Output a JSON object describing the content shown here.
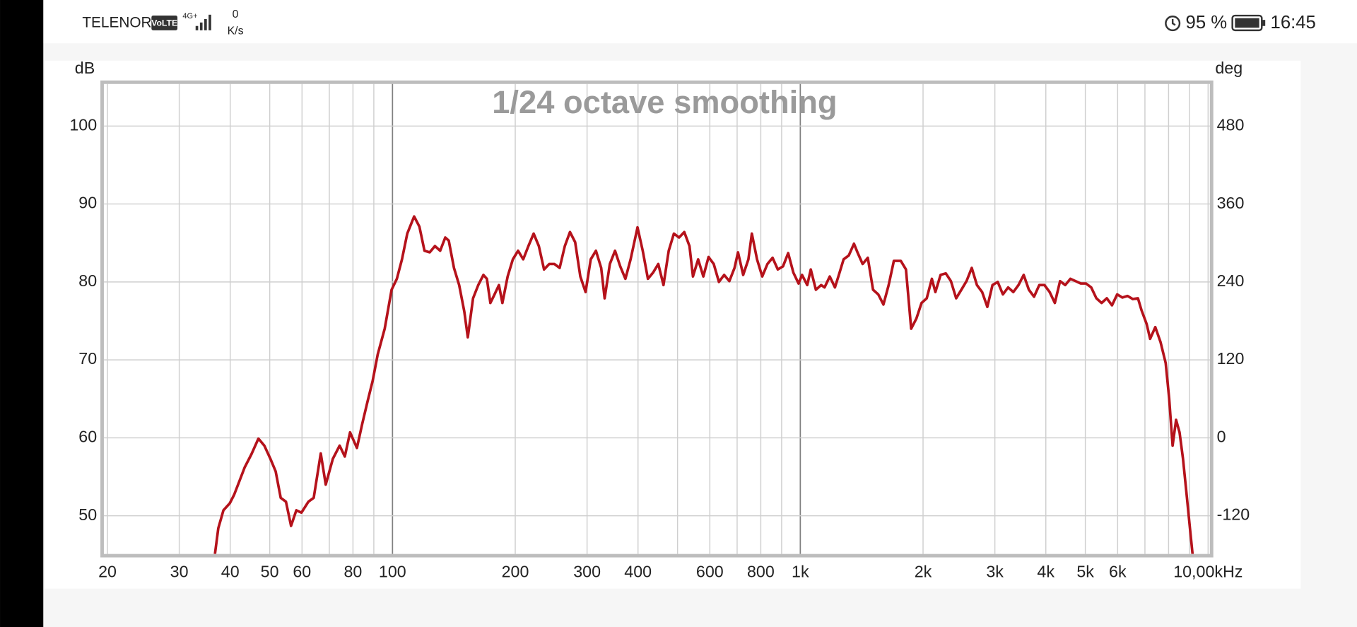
{
  "status_bar": {
    "carrier": "TELENOR",
    "volte": "VoLTE",
    "network": "4G+",
    "speed_value": "0",
    "speed_unit": "K/s",
    "battery": "95 %",
    "time": "16:45"
  },
  "chart_data": {
    "type": "line",
    "title": "1/24 octave smoothing",
    "ylabel": "dB",
    "y2label": "deg",
    "log_x": true,
    "grid": true,
    "color": "#b5121b",
    "xlim": [
      19.6,
      10100
    ],
    "ylim": [
      45.1,
      105.4
    ],
    "y2lim": [
      -179,
      545
    ],
    "xticks": [
      20,
      30,
      40,
      50,
      60,
      80,
      100,
      200,
      300,
      400,
      600,
      800,
      {
        "value": 1000,
        "label": "1k"
      },
      {
        "value": 2000,
        "label": "2k"
      },
      {
        "value": 3000,
        "label": "3k"
      },
      {
        "value": 4000,
        "label": "4k"
      },
      {
        "value": 5000,
        "label": "5k"
      },
      {
        "value": 6000,
        "label": "6k"
      },
      {
        "value": 10000,
        "label": "10,00kHz"
      }
    ],
    "xminor": [
      70,
      90,
      500,
      700,
      900,
      7000,
      8000,
      9000
    ],
    "xmajor": [
      100,
      1000
    ],
    "yticks": [
      50,
      60,
      70,
      80,
      90,
      100
    ],
    "y2ticks": [
      -120,
      0,
      120,
      240,
      360,
      480
    ],
    "x": [
      36.7,
      37.4,
      38.5,
      39.9,
      40.9,
      42.1,
      43.4,
      45.1,
      46.9,
      48.5,
      50.2,
      51.7,
      53.2,
      54.8,
      56.4,
      58.1,
      59.8,
      62.2,
      64.1,
      66.7,
      68.6,
      71.4,
      74.2,
      76.4,
      78.7,
      81.8,
      84.3,
      86.8,
      89.4,
      92.0,
      95.7,
      99.5,
      102.5,
      105.5,
      108.7,
      113,
      116.4,
      119.8,
      123.4,
      127.1,
      130.9,
      134.7,
      137.4,
      141.5,
      145.7,
      150,
      153,
      157.6,
      162.3,
      167.1,
      170.4,
      173.8,
      177.2,
      182.4,
      186,
      191.6,
      197.3,
      203.2,
      209.2,
      215.4,
      221.9,
      228.5,
      235.3,
      242.3,
      249.5,
      257,
      264.6,
      272.4,
      280.5,
      288.8,
      297.5,
      306.3,
      315.4,
      324.9,
      331.3,
      341.2,
      351.3,
      361.8,
      372.5,
      383.6,
      398.9,
      410.8,
      423,
      435.6,
      448.5,
      461.9,
      475.7,
      489.8,
      504.4,
      519.4,
      534.9,
      545.5,
      561.7,
      578.4,
      595.7,
      613.4,
      631.7,
      650.5,
      669.9,
      689.8,
      703.5,
      724.4,
      746,
      760.7,
      783.3,
      806.6,
      830.7,
      855.1,
      880.8,
      907,
      933.9,
      961.6,
      990.3,
      1010,
      1040,
      1061,
      1092,
      1125,
      1147,
      1181,
      1216,
      1240,
      1277,
      1315,
      1354,
      1381,
      1422,
      1464,
      1508,
      1553,
      1599,
      1647,
      1696,
      1764,
      1816,
      1870,
      1926,
      1983,
      2042,
      2102,
      2144,
      2208,
      2274,
      2341,
      2411,
      2483,
      2556,
      2633,
      2711,
      2792,
      2875,
      2960,
      3049,
      3139,
      3233,
      3329,
      3428,
      3530,
      3635,
      3743,
      3855,
      3969,
      4088,
      4209,
      4335,
      4464,
      4596,
      4734,
      4874,
      5019,
      5168,
      5322,
      5481,
      5644,
      5812,
      5985,
      6163,
      6346,
      6536,
      6730,
      6863,
      7068,
      7208,
      7422,
      7643,
      7870,
      8025,
      8184,
      8346,
      8511,
      8679,
      8851,
      9026,
      9159
    ],
    "values": [
      45.1,
      48.4,
      50.7,
      51.6,
      52.7,
      54.4,
      56.2,
      57.9,
      59.9,
      59.0,
      57.3,
      55.7,
      52.3,
      51.8,
      48.7,
      50.7,
      50.4,
      51.8,
      52.3,
      58.0,
      54.0,
      57.3,
      59.0,
      57.6,
      60.7,
      58.7,
      61.8,
      64.6,
      67.3,
      70.7,
      74.0,
      79.0,
      80.4,
      82.9,
      86.2,
      88.4,
      87.1,
      84.0,
      83.8,
      84.6,
      84.0,
      85.7,
      85.3,
      81.8,
      79.6,
      76.2,
      72.9,
      77.9,
      79.6,
      80.9,
      80.4,
      77.3,
      78.2,
      79.6,
      77.3,
      80.7,
      82.9,
      84.0,
      82.9,
      84.6,
      86.2,
      84.6,
      81.6,
      82.3,
      82.3,
      81.8,
      84.6,
      86.4,
      85.1,
      80.7,
      78.7,
      82.9,
      84.0,
      81.8,
      77.9,
      82.3,
      84.0,
      82.0,
      80.4,
      82.9,
      87.0,
      84.0,
      80.4,
      81.2,
      82.3,
      79.6,
      84.0,
      86.2,
      85.7,
      86.4,
      84.6,
      80.7,
      82.9,
      80.7,
      83.2,
      82.3,
      80.0,
      80.9,
      80.1,
      81.8,
      83.8,
      80.9,
      82.9,
      86.2,
      82.9,
      80.7,
      82.3,
      83.1,
      81.6,
      82.0,
      83.7,
      81.2,
      79.8,
      80.9,
      79.6,
      81.6,
      79.0,
      79.6,
      79.3,
      80.7,
      79.3,
      80.7,
      82.9,
      83.4,
      84.9,
      83.8,
      82.3,
      83.1,
      79.0,
      78.4,
      77.1,
      79.6,
      82.7,
      82.7,
      81.6,
      74.0,
      75.3,
      77.3,
      77.9,
      80.4,
      78.7,
      80.9,
      81.1,
      80.1,
      77.9,
      79.0,
      80.1,
      81.8,
      79.6,
      78.7,
      76.8,
      79.6,
      80.0,
      78.4,
      79.3,
      78.7,
      79.6,
      80.9,
      79.0,
      78.1,
      79.6,
      79.6,
      78.7,
      77.3,
      80.1,
      79.6,
      80.4,
      80.1,
      79.8,
      79.8,
      79.3,
      77.9,
      77.3,
      77.9,
      77.0,
      78.4,
      78.0,
      78.2,
      77.8,
      77.9,
      76.4,
      74.6,
      72.7,
      74.2,
      72.3,
      69.6,
      65.1,
      59.0,
      62.3,
      60.7,
      57.3,
      52.9,
      48.4,
      45.1
    ]
  }
}
